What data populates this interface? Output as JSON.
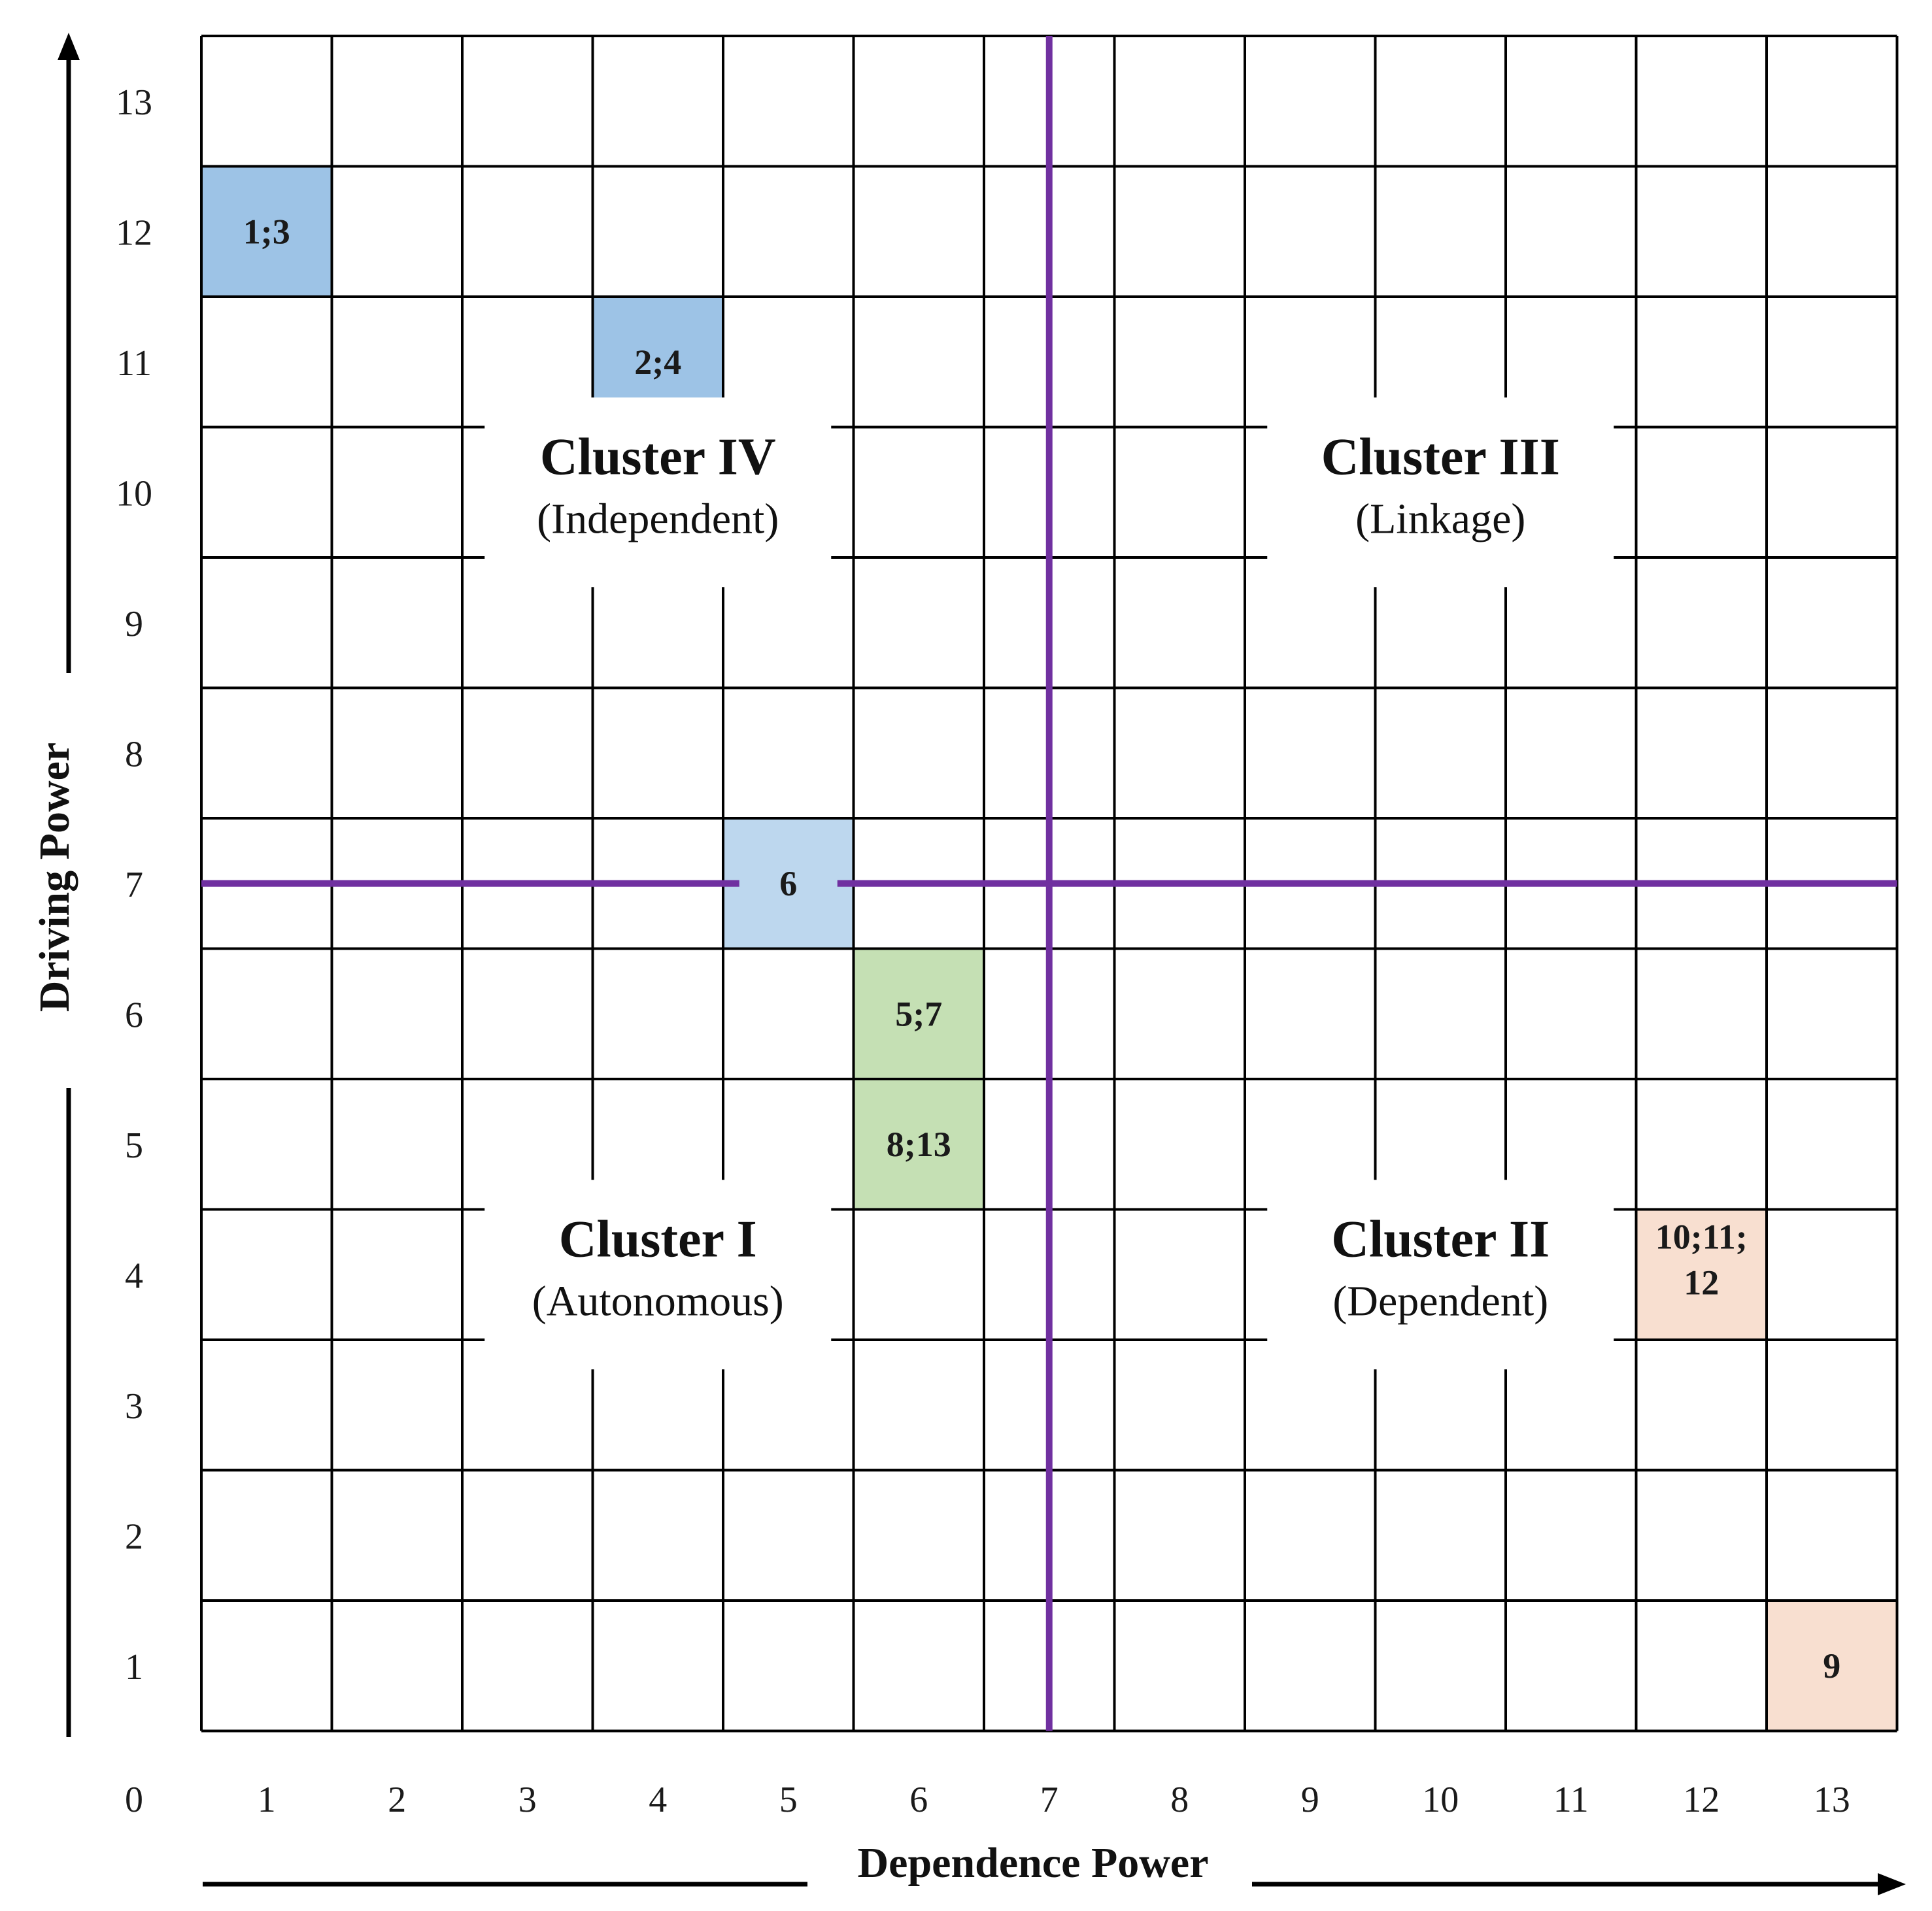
{
  "chart_data": {
    "type": "scatter",
    "title": "",
    "xlabel": "Dependence Power",
    "ylabel": "Driving Power",
    "xlim": [
      0,
      13
    ],
    "ylim": [
      0,
      13
    ],
    "origin_label": "0",
    "x_ticks": [
      "1",
      "2",
      "3",
      "4",
      "5",
      "6",
      "7",
      "8",
      "9",
      "10",
      "11",
      "12",
      "13"
    ],
    "y_ticks": [
      "1",
      "2",
      "3",
      "4",
      "5",
      "6",
      "7",
      "8",
      "9",
      "10",
      "11",
      "12",
      "13"
    ],
    "divider": {
      "x": 7,
      "y": 7,
      "color": "#7030a0"
    },
    "points": [
      {
        "x": 1,
        "y": 12,
        "label": "1;3",
        "color": "#9dc3e6"
      },
      {
        "x": 4,
        "y": 11,
        "label": "2;4",
        "color": "#9dc3e6"
      },
      {
        "x": 5,
        "y": 7,
        "label": "6",
        "color": "#bdd7ee"
      },
      {
        "x": 6,
        "y": 6,
        "label": "5;7",
        "color": "#c5e0b4"
      },
      {
        "x": 6,
        "y": 5,
        "label": "8;13",
        "color": "#c5e0b4"
      },
      {
        "x": 12,
        "y": 4,
        "label": "10;11;12",
        "lines": [
          "10;11;",
          "12"
        ],
        "color": "#f8dfd0"
      },
      {
        "x": 13,
        "y": 1,
        "label": "9",
        "color": "#f8dfd0"
      }
    ],
    "clusters": [
      {
        "name": "Cluster I",
        "sub": "(Autonomous)",
        "quadrant": "bottom-left"
      },
      {
        "name": "Cluster II",
        "sub": "(Dependent)",
        "quadrant": "bottom-right"
      },
      {
        "name": "Cluster III",
        "sub": "(Linkage)",
        "quadrant": "top-right"
      },
      {
        "name": "Cluster IV",
        "sub": "(Independent)",
        "quadrant": "top-left"
      }
    ]
  }
}
